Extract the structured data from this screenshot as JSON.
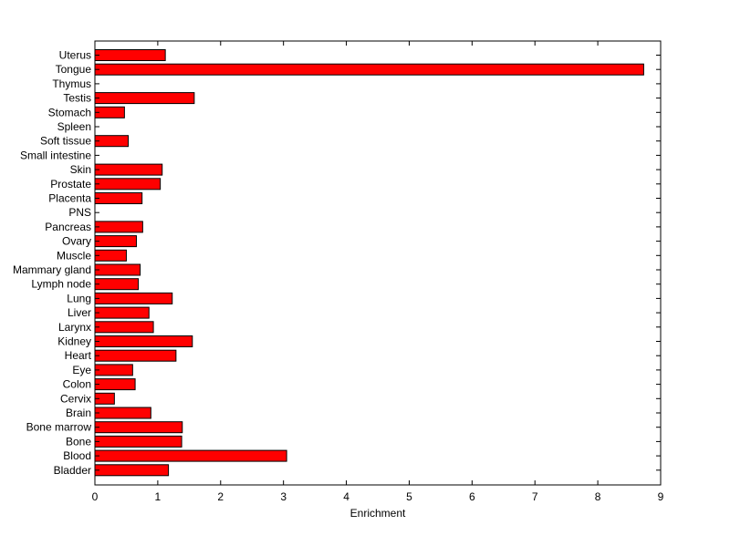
{
  "chart_data": {
    "type": "bar",
    "orientation": "horizontal",
    "categories": [
      "Uterus",
      "Tongue",
      "Thymus",
      "Testis",
      "Stomach",
      "Spleen",
      "Soft tissue",
      "Small intestine",
      "Skin",
      "Prostate",
      "Placenta",
      "PNS",
      "Pancreas",
      "Ovary",
      "Muscle",
      "Mammary gland",
      "Lymph node",
      "Lung",
      "Liver",
      "Larynx",
      "Kidney",
      "Heart",
      "Eye",
      "Colon",
      "Cervix",
      "Brain",
      "Bone marrow",
      "Bone",
      "Blood",
      "Bladder"
    ],
    "values": [
      1.12,
      8.73,
      0,
      1.58,
      0.47,
      0,
      0.53,
      0,
      1.07,
      1.04,
      0.75,
      0,
      0.76,
      0.66,
      0.5,
      0.72,
      0.69,
      1.23,
      0.86,
      0.93,
      1.55,
      1.29,
      0.6,
      0.64,
      0.31,
      0.89,
      1.39,
      1.38,
      3.05,
      1.17
    ],
    "title": "",
    "xlabel": "Enrichment",
    "ylabel": "",
    "xlim": [
      0,
      9
    ],
    "xticks": [
      0,
      1,
      2,
      3,
      4,
      5,
      6,
      7,
      8,
      9
    ],
    "grid": false,
    "bar_color": "#ff0000",
    "edge_color": "#000000"
  }
}
